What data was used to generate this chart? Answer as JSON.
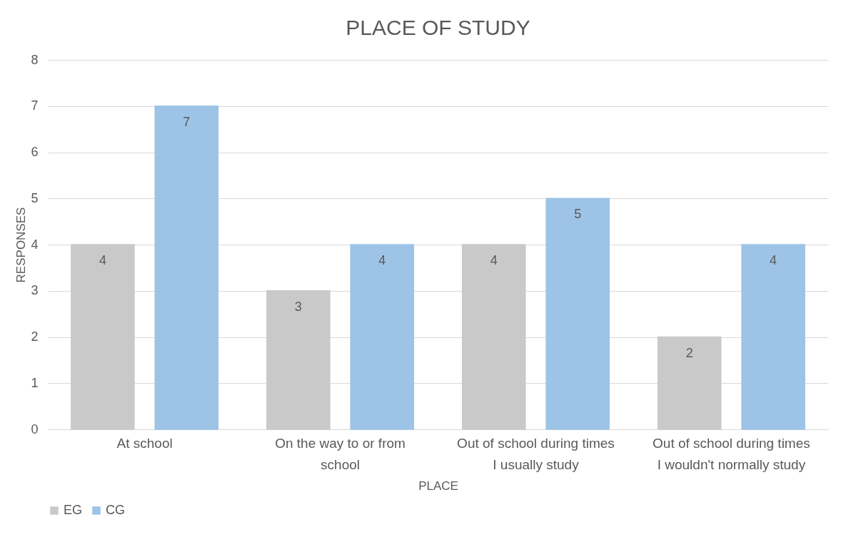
{
  "chart_data": {
    "type": "bar",
    "title": "PLACE OF STUDY",
    "xlabel": "PLACE",
    "ylabel": "RESPONSES",
    "categories": [
      "At school",
      "On the way to or from school",
      "Out of school during times I usually study",
      "Out of school during times I wouldn't normally study"
    ],
    "series": [
      {
        "name": "EG",
        "color": "#c9c9c9",
        "values": [
          4,
          3,
          4,
          2
        ]
      },
      {
        "name": "CG",
        "color": "#9dc3e6",
        "values": [
          7,
          4,
          5,
          4
        ]
      }
    ],
    "ylim": [
      0,
      8
    ],
    "yticks": [
      0,
      1,
      2,
      3,
      4,
      5,
      6,
      7,
      8
    ],
    "grid": "y",
    "legend": "bottom",
    "data_labels": true
  }
}
